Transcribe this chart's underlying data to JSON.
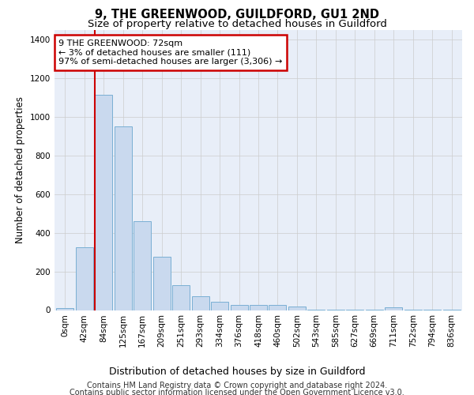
{
  "title": "9, THE GREENWOOD, GUILDFORD, GU1 2ND",
  "subtitle": "Size of property relative to detached houses in Guildford",
  "xlabel": "Distribution of detached houses by size in Guildford",
  "ylabel": "Number of detached properties",
  "footer_line1": "Contains HM Land Registry data © Crown copyright and database right 2024.",
  "footer_line2": "Contains public sector information licensed under the Open Government Licence v3.0.",
  "bar_labels": [
    "0sqm",
    "42sqm",
    "84sqm",
    "125sqm",
    "167sqm",
    "209sqm",
    "251sqm",
    "293sqm",
    "334sqm",
    "376sqm",
    "418sqm",
    "460sqm",
    "502sqm",
    "543sqm",
    "585sqm",
    "627sqm",
    "669sqm",
    "711sqm",
    "752sqm",
    "794sqm",
    "836sqm"
  ],
  "bar_values": [
    10,
    325,
    1115,
    950,
    460,
    275,
    130,
    70,
    42,
    25,
    28,
    28,
    18,
    3,
    3,
    3,
    3,
    15,
    3,
    3,
    3
  ],
  "bar_color": "#c9d9ee",
  "bar_edge_color": "#7aafd4",
  "annotation_text_line1": "9 THE GREENWOOD: 72sqm",
  "annotation_text_line2": "← 3% of detached houses are smaller (111)",
  "annotation_text_line3": "97% of semi-detached houses are larger (3,306) →",
  "annotation_box_color": "#ffffff",
  "annotation_box_edge_color": "#cc0000",
  "vline_color": "#cc0000",
  "ylim": [
    0,
    1450
  ],
  "yticks": [
    0,
    200,
    400,
    600,
    800,
    1000,
    1200,
    1400
  ],
  "grid_color": "#cccccc",
  "bg_color": "#e8eef8",
  "fig_bg_color": "#ffffff",
  "title_fontsize": 10.5,
  "subtitle_fontsize": 9.5,
  "xlabel_fontsize": 9,
  "ylabel_fontsize": 8.5,
  "tick_fontsize": 7.5,
  "annotation_fontsize": 8,
  "footer_fontsize": 7
}
